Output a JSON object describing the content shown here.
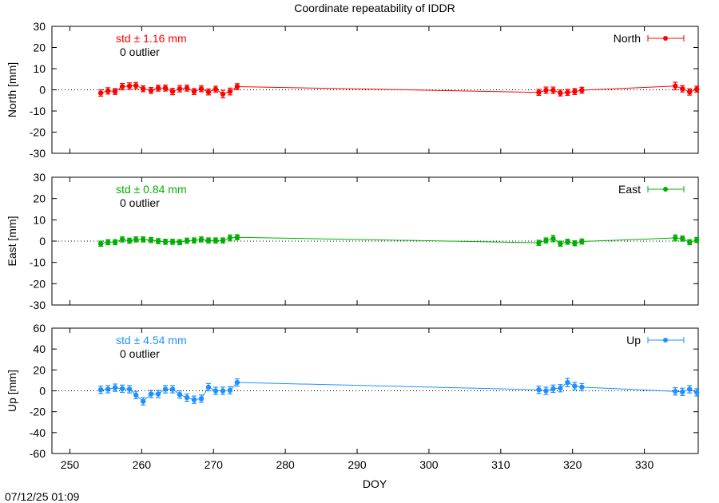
{
  "chart_data": {
    "type": "line",
    "title": "Coordinate repeatability of IDDR",
    "xlabel": "DOY",
    "x_ticks": [
      250,
      260,
      270,
      280,
      290,
      300,
      310,
      320,
      330
    ],
    "xlim": [
      247.5,
      337.5
    ],
    "timestamp": "07/12/25 01:09",
    "panels": [
      {
        "name": "North",
        "ylabel": "North [mm]",
        "color": "#ff0000",
        "ylim": [
          -30,
          30
        ],
        "y_ticks": [
          30,
          20,
          10,
          0,
          -10,
          -20,
          -30
        ],
        "std_label": "std ± 1.16 mm",
        "outlier_label": "0 outlier",
        "legend": "North",
        "x": [
          254.3,
          255.3,
          256.3,
          257.3,
          258.3,
          259.2,
          260.2,
          261.3,
          262.3,
          263.3,
          264.3,
          265.3,
          266.3,
          267.3,
          268.3,
          269.3,
          270.3,
          271.3,
          272.3,
          273.3,
          315.3,
          316.3,
          317.3,
          318.3,
          319.3,
          320.3,
          321.3,
          334.3,
          335.3,
          336.3,
          337.3
        ],
        "y": [
          -1.5,
          -0.5,
          -0.8,
          1.5,
          1.8,
          2.0,
          0.5,
          -0.3,
          0.8,
          0.8,
          -0.8,
          0.5,
          0.8,
          -0.8,
          0.5,
          -1.0,
          0.3,
          -2.0,
          -0.8,
          1.5,
          -1.2,
          -0.2,
          -0.2,
          -1.5,
          -1.2,
          -0.8,
          -0.2,
          1.8,
          0.5,
          -1.0,
          0.3
        ],
        "err": [
          1.5,
          1.5,
          1.4,
          1.5,
          1.5,
          1.5,
          1.4,
          1.4,
          1.4,
          1.4,
          1.5,
          1.5,
          1.4,
          1.4,
          1.4,
          1.4,
          1.4,
          1.8,
          1.6,
          1.4,
          1.4,
          1.5,
          1.5,
          1.4,
          1.4,
          1.4,
          1.4,
          1.8,
          1.5,
          1.5,
          1.4
        ]
      },
      {
        "name": "East",
        "ylabel": "East [mm]",
        "color": "#00b000",
        "ylim": [
          -30,
          30
        ],
        "y_ticks": [
          30,
          20,
          10,
          0,
          -10,
          -20,
          -30
        ],
        "std_label": "std ± 0.84 mm",
        "outlier_label": "0 outlier",
        "legend": "East",
        "x": [
          254.3,
          255.3,
          256.3,
          257.3,
          258.3,
          259.2,
          260.2,
          261.3,
          262.3,
          263.3,
          264.3,
          265.3,
          266.3,
          267.3,
          268.3,
          269.3,
          270.3,
          271.3,
          272.3,
          273.3,
          315.3,
          316.3,
          317.3,
          318.3,
          319.3,
          320.3,
          321.3,
          334.3,
          335.3,
          336.3,
          337.3
        ],
        "y": [
          -1.2,
          -0.5,
          -0.5,
          0.8,
          0.2,
          0.8,
          0.8,
          0.5,
          0.0,
          -0.3,
          -0.3,
          -0.5,
          0.2,
          0.3,
          0.8,
          0.3,
          0.3,
          0.3,
          1.5,
          1.8,
          -0.8,
          0.3,
          1.2,
          -1.2,
          -0.3,
          -1.0,
          -0.2,
          1.5,
          1.2,
          -0.5,
          0.5
        ],
        "err": [
          1.2,
          1.2,
          1.2,
          1.2,
          1.2,
          1.2,
          1.2,
          1.2,
          1.2,
          1.2,
          1.2,
          1.2,
          1.2,
          1.2,
          1.2,
          1.2,
          1.2,
          1.2,
          1.4,
          1.2,
          1.2,
          1.2,
          1.5,
          1.2,
          1.2,
          1.2,
          1.2,
          1.4,
          1.2,
          1.2,
          1.2
        ]
      },
      {
        "name": "Up",
        "ylabel": "Up [mm]",
        "color": "#1e90ff",
        "ylim": [
          -60,
          60
        ],
        "y_ticks": [
          60,
          40,
          20,
          0,
          -20,
          -40,
          -60
        ],
        "std_label": "std ± 4.54 mm",
        "outlier_label": "0 outlier",
        "legend": "Up",
        "x": [
          254.3,
          255.3,
          256.3,
          257.3,
          258.3,
          259.2,
          260.2,
          261.3,
          262.3,
          263.3,
          264.3,
          265.3,
          266.3,
          267.3,
          268.3,
          269.3,
          270.3,
          271.3,
          272.3,
          273.3,
          315.3,
          316.3,
          317.3,
          318.3,
          319.3,
          320.3,
          321.3,
          334.3,
          335.3,
          336.3,
          337.3
        ],
        "y": [
          1.0,
          1.5,
          3.0,
          2.0,
          1.5,
          -4.0,
          -10.0,
          -3.0,
          -3.0,
          1.5,
          1.5,
          -3.5,
          -6.5,
          -8.5,
          -7.5,
          3.5,
          0.0,
          0.0,
          0.5,
          8.0,
          1.0,
          0.0,
          2.0,
          2.5,
          8.0,
          4.5,
          3.5,
          -0.5,
          -1.0,
          1.5,
          -1.5
        ],
        "err": [
          3.5,
          3.5,
          3.5,
          3.5,
          3.5,
          3.5,
          3.5,
          3.5,
          3.5,
          3.5,
          3.5,
          3.5,
          3.5,
          3.5,
          3.5,
          3.5,
          3.5,
          3.5,
          3.5,
          3.5,
          3.5,
          3.5,
          3.5,
          3.5,
          4.0,
          3.5,
          3.5,
          3.5,
          3.5,
          3.5,
          3.5
        ]
      }
    ]
  }
}
